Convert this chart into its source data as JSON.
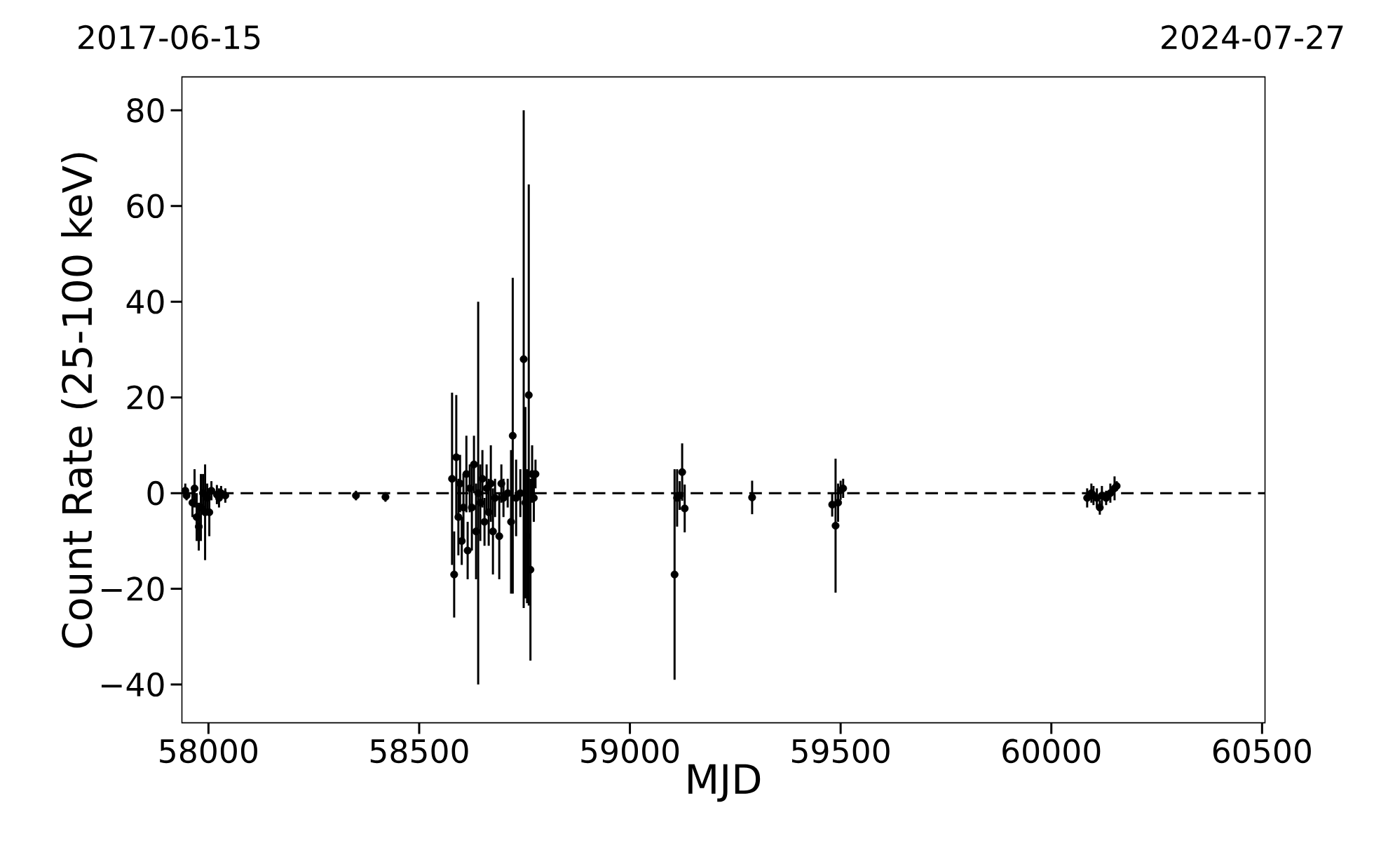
{
  "chart_data": {
    "type": "scatter",
    "xlabel": "MJD",
    "ylabel": "Count Rate (25-100 keV)",
    "x": [
      57945,
      57948,
      57962,
      57967,
      57972,
      57977,
      57982,
      57987,
      57992,
      57997,
      58002,
      58007,
      58020,
      58025,
      58030,
      58040,
      58350,
      58420,
      58578,
      58583,
      58588,
      58593,
      58597,
      58601,
      58605,
      58612,
      58615,
      58620,
      58625,
      58630,
      58635,
      58640,
      58645,
      58650,
      58655,
      58660,
      58665,
      58670,
      58675,
      58680,
      58690,
      58695,
      58700,
      58710,
      58718,
      58722,
      58730,
      58740,
      58748,
      58752,
      58756,
      58760,
      58764,
      58768,
      58772,
      58776,
      59106,
      59112,
      59118,
      59124,
      59130,
      59290,
      59480,
      59488,
      59494,
      59500,
      59506,
      60085,
      60095,
      60100,
      60108,
      60115,
      60120,
      60130,
      60140,
      60150,
      60155
    ],
    "values": [
      0.5,
      -0.5,
      -2,
      1,
      -5,
      -7,
      -3,
      0,
      -4,
      -1,
      -4,
      0.5,
      -0.3,
      -1,
      0,
      -0.5,
      -0.5,
      -0.8,
      3,
      -17,
      7.5,
      -5,
      2,
      -10,
      -3,
      4,
      -12,
      1,
      -3,
      6,
      -8,
      0,
      -2,
      3,
      -6,
      1,
      -4,
      2,
      -8,
      -1,
      -9,
      2,
      -1,
      0,
      -6,
      12,
      -1,
      0,
      28,
      -2,
      -9,
      20.5,
      -16,
      4,
      -1,
      4,
      -17,
      -1,
      -0.5,
      4.4,
      -3.2,
      -0.9,
      -2.4,
      -6.8,
      -2,
      0.6,
      1,
      -1,
      0,
      -0.5,
      -1,
      -3,
      -0.5,
      -1,
      0,
      1,
      1.5
    ],
    "errors": [
      1.5,
      1,
      3,
      4,
      5,
      5,
      7,
      4,
      10,
      3,
      5,
      2,
      2,
      2,
      1.5,
      1.5,
      1,
      1,
      18,
      9,
      13,
      8,
      6,
      5,
      7,
      8,
      6,
      5,
      9,
      6,
      10,
      40,
      8,
      6,
      5,
      5,
      7,
      8,
      9,
      4,
      9,
      4,
      4,
      3,
      15,
      33,
      8,
      5,
      52,
      20,
      14,
      44,
      19,
      6,
      5,
      3,
      22,
      6,
      3,
      6,
      5,
      3.5,
      2.5,
      14,
      4,
      2,
      2,
      2,
      2,
      2,
      2,
      1.5,
      2,
      1.5,
      2,
      2.5,
      1
    ],
    "color": "#000000",
    "marker": "circle",
    "ref_lines": [
      {
        "axis": "y",
        "value": 0,
        "color": "#000000",
        "line_style": "dashed"
      }
    ],
    "xlim": [
      57937,
      60507
    ],
    "ylim": [
      -48,
      87
    ],
    "xticks": [
      58000,
      58500,
      59000,
      59500,
      60000,
      60500
    ],
    "yticks": [
      {
        "value": -40,
        "label": "−40"
      },
      {
        "value": -20,
        "label": "−20"
      },
      0,
      20,
      40,
      60,
      80
    ],
    "annotations": [
      "2017-06-15",
      "2024-07-27"
    ]
  }
}
